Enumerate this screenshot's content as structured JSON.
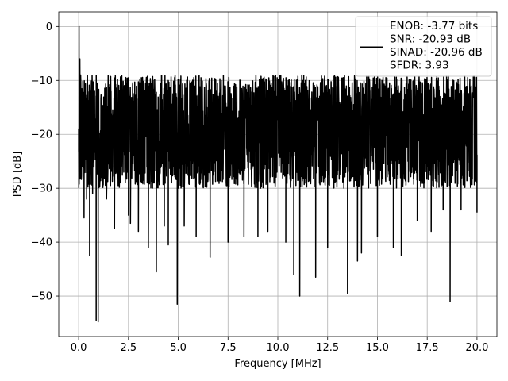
{
  "chart_data": {
    "type": "line",
    "xlabel": "Frequency [MHz]",
    "ylabel": "PSD [dB]",
    "xlim": [
      -1.0,
      21.0
    ],
    "ylim": [
      -57.5,
      2.7
    ],
    "xticks": [
      0.0,
      2.5,
      5.0,
      7.5,
      10.0,
      12.5,
      15.0,
      17.5,
      20.0
    ],
    "xtick_labels": [
      "0.0",
      "2.5",
      "5.0",
      "7.5",
      "10.0",
      "12.5",
      "15.0",
      "17.5",
      "20.0"
    ],
    "yticks": [
      0,
      -10,
      -20,
      -30,
      -40,
      -50
    ],
    "ytick_labels": [
      "0",
      "−10",
      "−20",
      "−30",
      "−40",
      "−50"
    ],
    "grid": true,
    "legend_position": "top-right",
    "legend_lines": [
      "ENOB: -3.77 bits",
      "SNR: -20.93 dB",
      "SINAD: -20.96 dB",
      "SFDR: 3.93"
    ],
    "series": [
      {
        "color": "#000000",
        "x_range": [
          0.0,
          20.0
        ],
        "noise_floor_mean_db": -19,
        "noise_envelope_db": [
          -30,
          -9
        ],
        "points": [
          [
            0.0,
            -19
          ],
          [
            0.02,
            0.0
          ],
          [
            0.04,
            -28
          ],
          [
            0.06,
            -6
          ],
          [
            0.08,
            -22
          ],
          [
            0.1,
            -9
          ],
          [
            0.2,
            -26
          ],
          [
            0.27,
            -35.5
          ],
          [
            0.4,
            -32
          ],
          [
            0.55,
            -42.5
          ],
          [
            0.7,
            -31
          ],
          [
            0.88,
            -54.5
          ],
          [
            0.98,
            -54.8
          ],
          [
            1.4,
            -32
          ],
          [
            1.8,
            -37.5
          ],
          [
            2.1,
            -29
          ],
          [
            2.5,
            -35
          ],
          [
            2.6,
            -36.5
          ],
          [
            3.0,
            -38
          ],
          [
            3.5,
            -41
          ],
          [
            3.9,
            -45.5
          ],
          [
            4.3,
            -37
          ],
          [
            4.5,
            -40.5
          ],
          [
            4.95,
            -51.5
          ],
          [
            5.3,
            -37
          ],
          [
            5.9,
            -39
          ],
          [
            6.6,
            -42.8
          ],
          [
            7.5,
            -40
          ],
          [
            8.3,
            -39
          ],
          [
            9.0,
            -39
          ],
          [
            9.5,
            -38
          ],
          [
            10.4,
            -40
          ],
          [
            10.8,
            -46
          ],
          [
            11.1,
            -50
          ],
          [
            11.9,
            -46.5
          ],
          [
            12.5,
            -41
          ],
          [
            13.5,
            -49.5
          ],
          [
            14.0,
            -43.5
          ],
          [
            14.2,
            -42
          ],
          [
            15.0,
            -39
          ],
          [
            15.8,
            -41
          ],
          [
            16.2,
            -42.5
          ],
          [
            17.0,
            -36
          ],
          [
            17.7,
            -38
          ],
          [
            18.3,
            -34
          ],
          [
            18.65,
            -51
          ],
          [
            19.2,
            -34
          ],
          [
            20.0,
            -34.5
          ]
        ]
      }
    ]
  }
}
